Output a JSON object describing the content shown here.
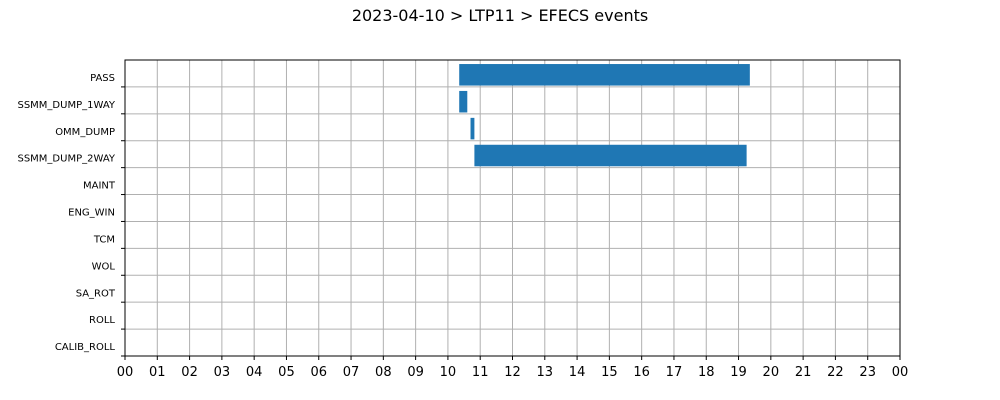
{
  "chart_data": {
    "type": "gantt",
    "title": "2023-04-10 > LTP11 > EFECS events",
    "xlim": [
      0,
      24
    ],
    "x_tick_labels": [
      "00",
      "01",
      "02",
      "03",
      "04",
      "05",
      "06",
      "07",
      "08",
      "09",
      "10",
      "11",
      "12",
      "13",
      "14",
      "15",
      "16",
      "17",
      "18",
      "19",
      "20",
      "21",
      "22",
      "23",
      "00"
    ],
    "categories": [
      "PASS",
      "SSMM_DUMP_1WAY",
      "OMM_DUMP",
      "SSMM_DUMP_2WAY",
      "MAINT",
      "ENG_WIN",
      "TCM",
      "WOL",
      "SA_ROT",
      "ROLL",
      "CALIB_ROLL"
    ],
    "series_color": "#1f77b4",
    "events": [
      {
        "category": "PASS",
        "start": 10.35,
        "end": 19.35
      },
      {
        "category": "SSMM_DUMP_1WAY",
        "start": 10.35,
        "end": 10.6
      },
      {
        "category": "OMM_DUMP",
        "start": 10.7,
        "end": 10.82
      },
      {
        "category": "SSMM_DUMP_2WAY",
        "start": 10.82,
        "end": 19.25
      }
    ],
    "grid": true
  }
}
